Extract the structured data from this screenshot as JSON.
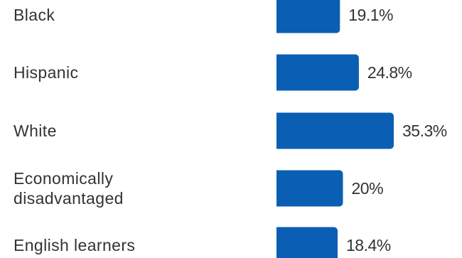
{
  "chart_data": {
    "type": "bar",
    "orientation": "horizontal",
    "categories": [
      "Black",
      "Hispanic",
      "White",
      "Economically\ndisadvantaged",
      "English learners"
    ],
    "values": [
      19.1,
      24.8,
      35.3,
      20,
      18.4
    ],
    "value_labels": [
      "19.1%",
      "24.8%",
      "35.3%",
      "20%",
      "18.4%"
    ],
    "bar_color": "#0a5fb4",
    "grid": false,
    "legend": "none"
  }
}
